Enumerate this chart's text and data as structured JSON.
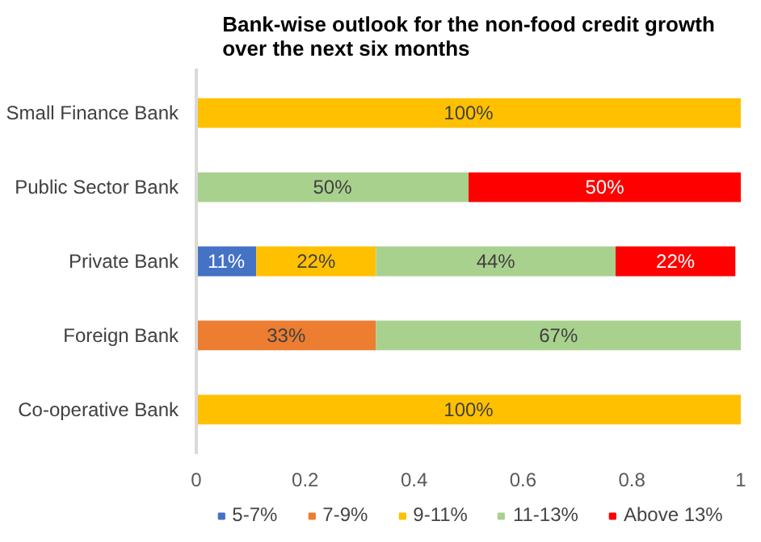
{
  "chart_data": {
    "type": "bar",
    "orientation": "horizontal",
    "stacked": true,
    "title": "Bank-wise outlook for the non-food credit growth over the next six months",
    "categories": [
      "Small Finance Bank",
      "Public Sector Bank",
      "Private Bank",
      "Foreign Bank",
      "Co-operative Bank"
    ],
    "series": [
      {
        "name": "5-7%",
        "color": "#4472c4",
        "values": [
          null,
          null,
          0.11,
          null,
          null
        ],
        "value_labels": [
          null,
          null,
          "11%",
          null,
          null
        ]
      },
      {
        "name": "7-9%",
        "color": "#ed7d31",
        "values": [
          null,
          null,
          null,
          0.33,
          null
        ],
        "value_labels": [
          null,
          null,
          null,
          "33%",
          null
        ]
      },
      {
        "name": "9-11%",
        "color": "#ffc000",
        "values": [
          1.0,
          null,
          0.22,
          null,
          1.0
        ],
        "value_labels": [
          "100%",
          null,
          "22%",
          null,
          "100%"
        ]
      },
      {
        "name": "11-13%",
        "color": "#a9d18e",
        "values": [
          null,
          0.5,
          0.44,
          0.67,
          null
        ],
        "value_labels": [
          null,
          "50%",
          "44%",
          "67%",
          null
        ]
      },
      {
        "name": "Above 13%",
        "color": "#ff0000",
        "values": [
          null,
          0.5,
          0.22,
          null,
          null
        ],
        "value_labels": [
          null,
          "50%",
          "22%",
          null,
          null
        ]
      }
    ],
    "xlim": [
      0,
      1
    ],
    "xticks": [
      0,
      0.2,
      0.4,
      0.6,
      0.8,
      1
    ],
    "grid": false,
    "legend": "bottom"
  }
}
